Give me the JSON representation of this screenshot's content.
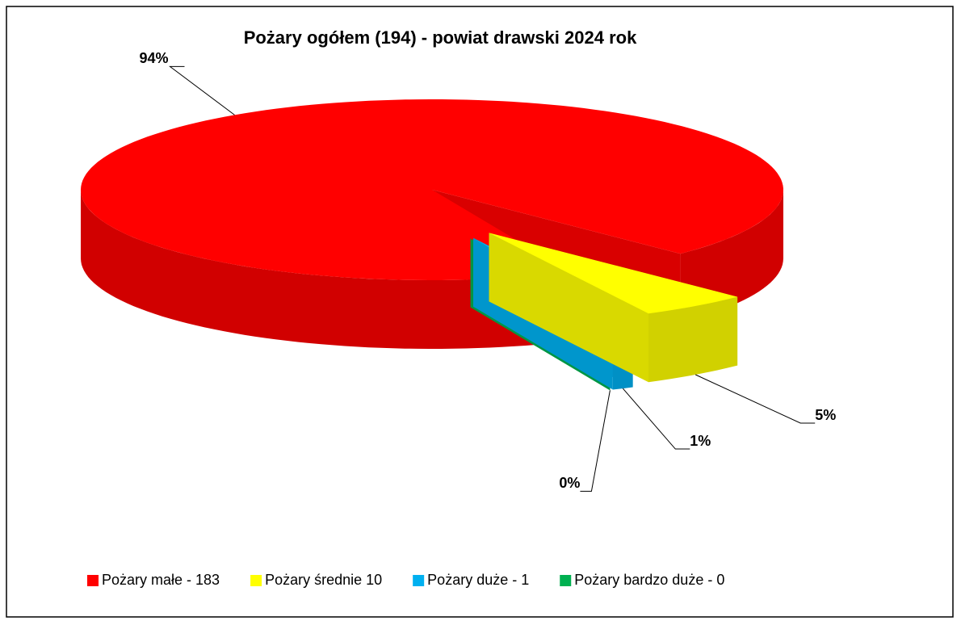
{
  "chart_data": {
    "type": "pie",
    "title": "Pożary ogółem (194) - powiat drawski 2024 rok",
    "categories": [
      "Pożary małe - 183",
      "Pożary średnie 10",
      "Pożary duże - 1",
      "Pożary bardzo duże - 0"
    ],
    "values": [
      94,
      5,
      1,
      0
    ],
    "value_labels": [
      "94%",
      "5%",
      "1%",
      "0%"
    ],
    "colors": [
      "#ff0000",
      "#ffff00",
      "#00b0f0",
      "#00b050"
    ],
    "legend": "bottom"
  }
}
